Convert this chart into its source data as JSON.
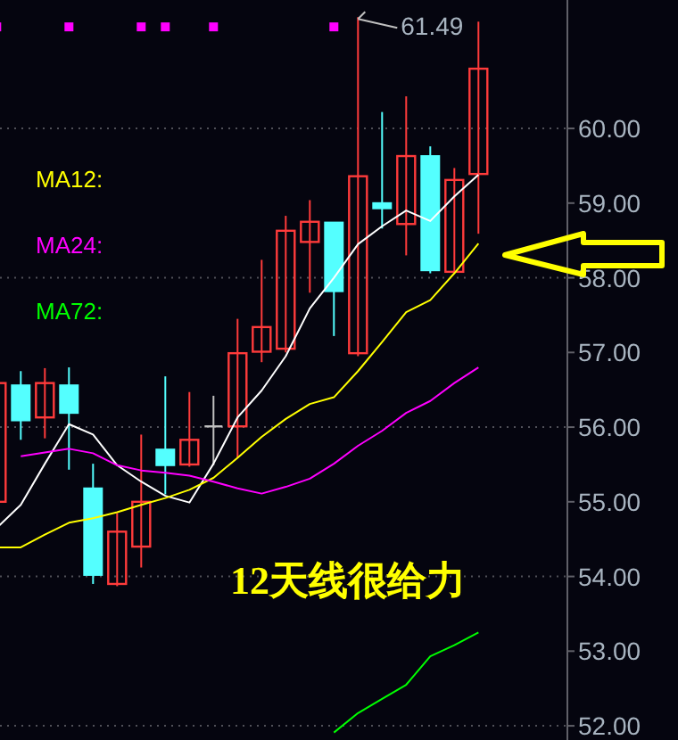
{
  "chart_data": {
    "type": "candlestick",
    "categories": [
      null,
      null,
      null,
      null,
      null,
      null,
      null,
      null,
      null,
      null,
      null,
      null,
      null,
      null,
      null,
      null,
      null,
      null,
      null,
      null,
      null
    ],
    "ohlc": [
      [
        55.0,
        56.59,
        55.0,
        56.59
      ],
      [
        56.56,
        56.75,
        55.83,
        56.09
      ],
      [
        56.13,
        56.79,
        55.85,
        56.59
      ],
      [
        56.56,
        56.8,
        55.43,
        56.19
      ],
      [
        55.18,
        55.51,
        53.9,
        54.02
      ],
      [
        53.9,
        54.85,
        53.87,
        54.6
      ],
      [
        54.4,
        55.9,
        54.12,
        55.0
      ],
      [
        55.7,
        56.68,
        55.1,
        55.49
      ],
      [
        55.5,
        56.47,
        55.47,
        55.83
      ],
      [
        56.01,
        56.42,
        55.49,
        56.01
      ],
      [
        56.01,
        57.45,
        55.59,
        56.99
      ],
      [
        57.01,
        58.24,
        56.87,
        57.34
      ],
      [
        57.05,
        58.83,
        57.0,
        58.63
      ],
      [
        58.48,
        59.04,
        57.8,
        58.75
      ],
      [
        58.74,
        58.74,
        57.22,
        57.82
      ],
      [
        56.99,
        61.49,
        56.95,
        59.36
      ],
      [
        59.0,
        60.22,
        58.66,
        58.93
      ],
      [
        58.72,
        60.43,
        58.3,
        59.63
      ],
      [
        59.63,
        59.76,
        58.06,
        58.1
      ],
      [
        58.08,
        59.47,
        58.08,
        59.31
      ],
      [
        59.39,
        61.43,
        58.59,
        60.8
      ]
    ],
    "colors": [
      "#ff3b3b",
      "#54ffff",
      "#ff3b3b",
      "#54ffff",
      "#54ffff",
      "#ff3b3b",
      "#ff3b3b",
      "#54ffff",
      "#ff3b3b",
      "#c0c0c0",
      "#ff3b3b",
      "#ff3b3b",
      "#ff3b3b",
      "#ff3b3b",
      "#54ffff",
      "#ff3b3b",
      "#54ffff",
      "#ff3b3b",
      "#54ffff",
      "#ff3b3b",
      "#ff3b3b"
    ],
    "series": [
      {
        "type": "line",
        "color": "#ffffff",
        "values": [
          54.65,
          54.96,
          55.51,
          56.04,
          55.9,
          55.49,
          55.27,
          55.08,
          54.99,
          55.51,
          56.13,
          56.49,
          56.95,
          57.59,
          58.0,
          58.45,
          58.69,
          58.9,
          58.76,
          59.09,
          59.38
        ]
      },
      {
        "type": "line",
        "name": "MA12:",
        "color": "#ffff00",
        "values": [
          54.39,
          54.39,
          54.56,
          54.72,
          54.78,
          54.86,
          54.96,
          55.05,
          55.16,
          55.32,
          55.59,
          55.87,
          56.11,
          56.31,
          56.4,
          56.75,
          57.14,
          57.54,
          57.7,
          58.06,
          58.46
        ]
      },
      {
        "type": "line",
        "name": "MA24:",
        "color": "#ff00ff",
        "values": [
          null,
          55.61,
          55.66,
          55.71,
          55.65,
          55.49,
          55.42,
          55.39,
          55.35,
          55.27,
          55.18,
          55.11,
          55.2,
          55.31,
          55.51,
          55.75,
          55.95,
          56.19,
          56.35,
          56.59,
          56.8
        ]
      },
      {
        "type": "line",
        "name": "MA72:",
        "color": "#00ff00",
        "values": [
          null,
          null,
          null,
          null,
          null,
          null,
          null,
          null,
          null,
          null,
          null,
          null,
          null,
          null,
          51.91,
          52.17,
          52.36,
          52.55,
          52.93,
          53.08,
          53.25
        ]
      },
      {
        "type": "scatter",
        "marker": "square",
        "color": "#ff00ff",
        "values": [
          61.36,
          null,
          null,
          61.36,
          null,
          null,
          61.36,
          61.36,
          null,
          61.36,
          null,
          null,
          null,
          null,
          61.36,
          null,
          null,
          null,
          null,
          null,
          null
        ]
      }
    ],
    "ylim": [
      51.81,
      61.72
    ],
    "yticks": [
      {
        "value": 52,
        "label": "52.00"
      },
      {
        "value": 53,
        "label": "53.00"
      },
      {
        "value": 54,
        "label": "54.00"
      },
      {
        "value": 55,
        "label": "55.00"
      },
      {
        "value": 56,
        "label": "56.00"
      },
      {
        "value": 57,
        "label": "57.00"
      },
      {
        "value": 58,
        "label": "58.00"
      },
      {
        "value": 59,
        "label": "59.00"
      },
      {
        "value": 60,
        "label": "60.00"
      }
    ],
    "ref_lines": [
      {
        "axis": "y",
        "value": 52,
        "line_style": "dotted",
        "color": "#505058"
      },
      {
        "axis": "y",
        "value": 54,
        "line_style": "dotted",
        "color": "#505058"
      },
      {
        "axis": "y",
        "value": 56,
        "line_style": "dotted",
        "color": "#505058"
      },
      {
        "axis": "y",
        "value": 58,
        "line_style": "dotted",
        "color": "#505058"
      },
      {
        "axis": "y",
        "value": 60,
        "line_style": "dotted",
        "color": "#505058"
      }
    ],
    "annotations": [
      "61.49",
      "12天线很给力"
    ],
    "legend": "left"
  }
}
